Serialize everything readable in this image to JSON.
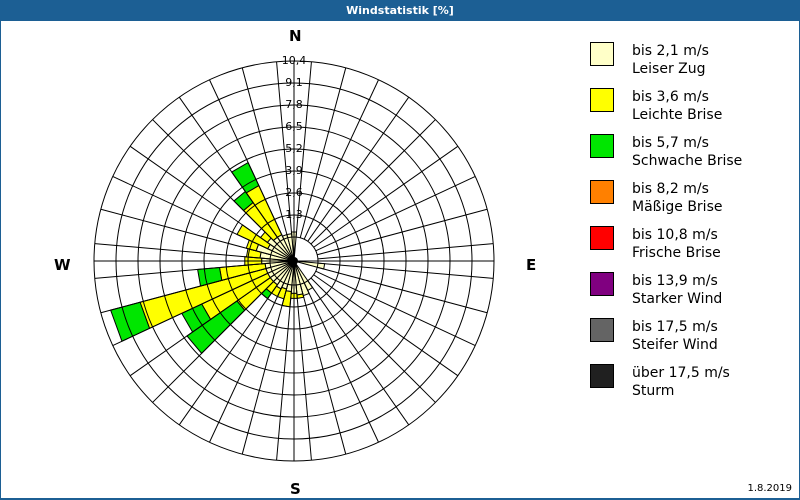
{
  "title": "Windstatistik [%]",
  "date": "1.8.2019",
  "compass": {
    "n": "N",
    "e": "E",
    "s": "S",
    "w": "W"
  },
  "ring_labels": [
    "1,3",
    "2,6",
    "3,9",
    "5,2",
    "6,5",
    "7,8",
    "9,1",
    "10,4"
  ],
  "legend": [
    {
      "range": "bis 2,1 m/s",
      "name": "Leiser Zug",
      "color": "#ffffc8"
    },
    {
      "range": "bis 3,6 m/s",
      "name": "Leichte Brise",
      "color": "#ffff00"
    },
    {
      "range": "bis 5,7 m/s",
      "name": "Schwache Brise",
      "color": "#00e600"
    },
    {
      "range": "bis 8,2 m/s",
      "name": "Mäßige Brise",
      "color": "#ff8000"
    },
    {
      "range": "bis 10,8 m/s",
      "name": "Frische Brise",
      "color": "#ff0000"
    },
    {
      "range": "bis 13,9 m/s",
      "name": "Starker Wind",
      "color": "#800080"
    },
    {
      "range": "bis 17,5 m/s",
      "name": "Steifer Wind",
      "color": "#646464"
    },
    {
      "range": "über 17,5 m/s",
      "name": "Sturm",
      "color": "#202020"
    }
  ],
  "chart_data": {
    "type": "polar-bar (wind rose)",
    "title": "Windstatistik [%]",
    "radial_unit": "%",
    "radial_ticks": [
      1.3,
      2.6,
      3.9,
      5.2,
      6.5,
      7.8,
      9.1,
      10.4
    ],
    "radial_max": 10.4,
    "sector_width_deg": 10,
    "series_names": [
      "bis 2,1 m/s",
      "bis 3,6 m/s",
      "bis 5,7 m/s",
      "bis 8,2 m/s",
      "bis 10,8 m/s",
      "bis 13,9 m/s",
      "bis 17,5 m/s",
      "über 17,5 m/s"
    ],
    "sectors": [
      {
        "dir": 0,
        "values": [
          0.3,
          0.0,
          0.0
        ]
      },
      {
        "dir": 100,
        "values": [
          0.4,
          0.0,
          0.0
        ]
      },
      {
        "dir": 150,
        "values": [
          0.5,
          0.0,
          0.0
        ]
      },
      {
        "dir": 160,
        "values": [
          0.7,
          0.0,
          0.0
        ]
      },
      {
        "dir": 170,
        "values": [
          0.6,
          0.2,
          0.0
        ]
      },
      {
        "dir": 180,
        "values": [
          0.5,
          0.3,
          0.0
        ]
      },
      {
        "dir": 190,
        "values": [
          0.4,
          0.9,
          0.0
        ]
      },
      {
        "dir": 200,
        "values": [
          0.3,
          0.6,
          0.0
        ]
      },
      {
        "dir": 210,
        "values": [
          0.4,
          0.5,
          0.0
        ]
      },
      {
        "dir": 220,
        "values": [
          0.3,
          0.6,
          0.4
        ]
      },
      {
        "dir": 230,
        "values": [
          0.3,
          2.4,
          3.6
        ]
      },
      {
        "dir": 240,
        "values": [
          0.3,
          4.3,
          1.3
        ]
      },
      {
        "dir": 250,
        "values": [
          0.3,
          7.7,
          1.8
        ]
      },
      {
        "dir": 260,
        "values": [
          0.3,
          2.7,
          1.3
        ]
      },
      {
        "dir": 270,
        "values": [
          0.5,
          1.0,
          0.0
        ]
      },
      {
        "dir": 280,
        "values": [
          0.6,
          0.8,
          0.0
        ]
      },
      {
        "dir": 290,
        "values": [
          0.9,
          0.6,
          0.0
        ]
      },
      {
        "dir": 300,
        "values": [
          0.3,
          2.0,
          0.0
        ]
      },
      {
        "dir": 310,
        "values": [
          0.5,
          0.5,
          0.0
        ]
      },
      {
        "dir": 320,
        "values": [
          0.3,
          2.5,
          0.8
        ]
      },
      {
        "dir": 330,
        "values": [
          0.3,
          3.2,
          1.5
        ]
      },
      {
        "dir": 340,
        "values": [
          0.2,
          0.0,
          0.0
        ]
      },
      {
        "dir": 350,
        "values": [
          0.2,
          0.0,
          0.0
        ]
      }
    ],
    "colors": [
      "#ffffc8",
      "#ffff00",
      "#00e600",
      "#ff8000",
      "#ff0000",
      "#800080",
      "#646464",
      "#202020"
    ],
    "grid": true,
    "legend_position": "right"
  }
}
